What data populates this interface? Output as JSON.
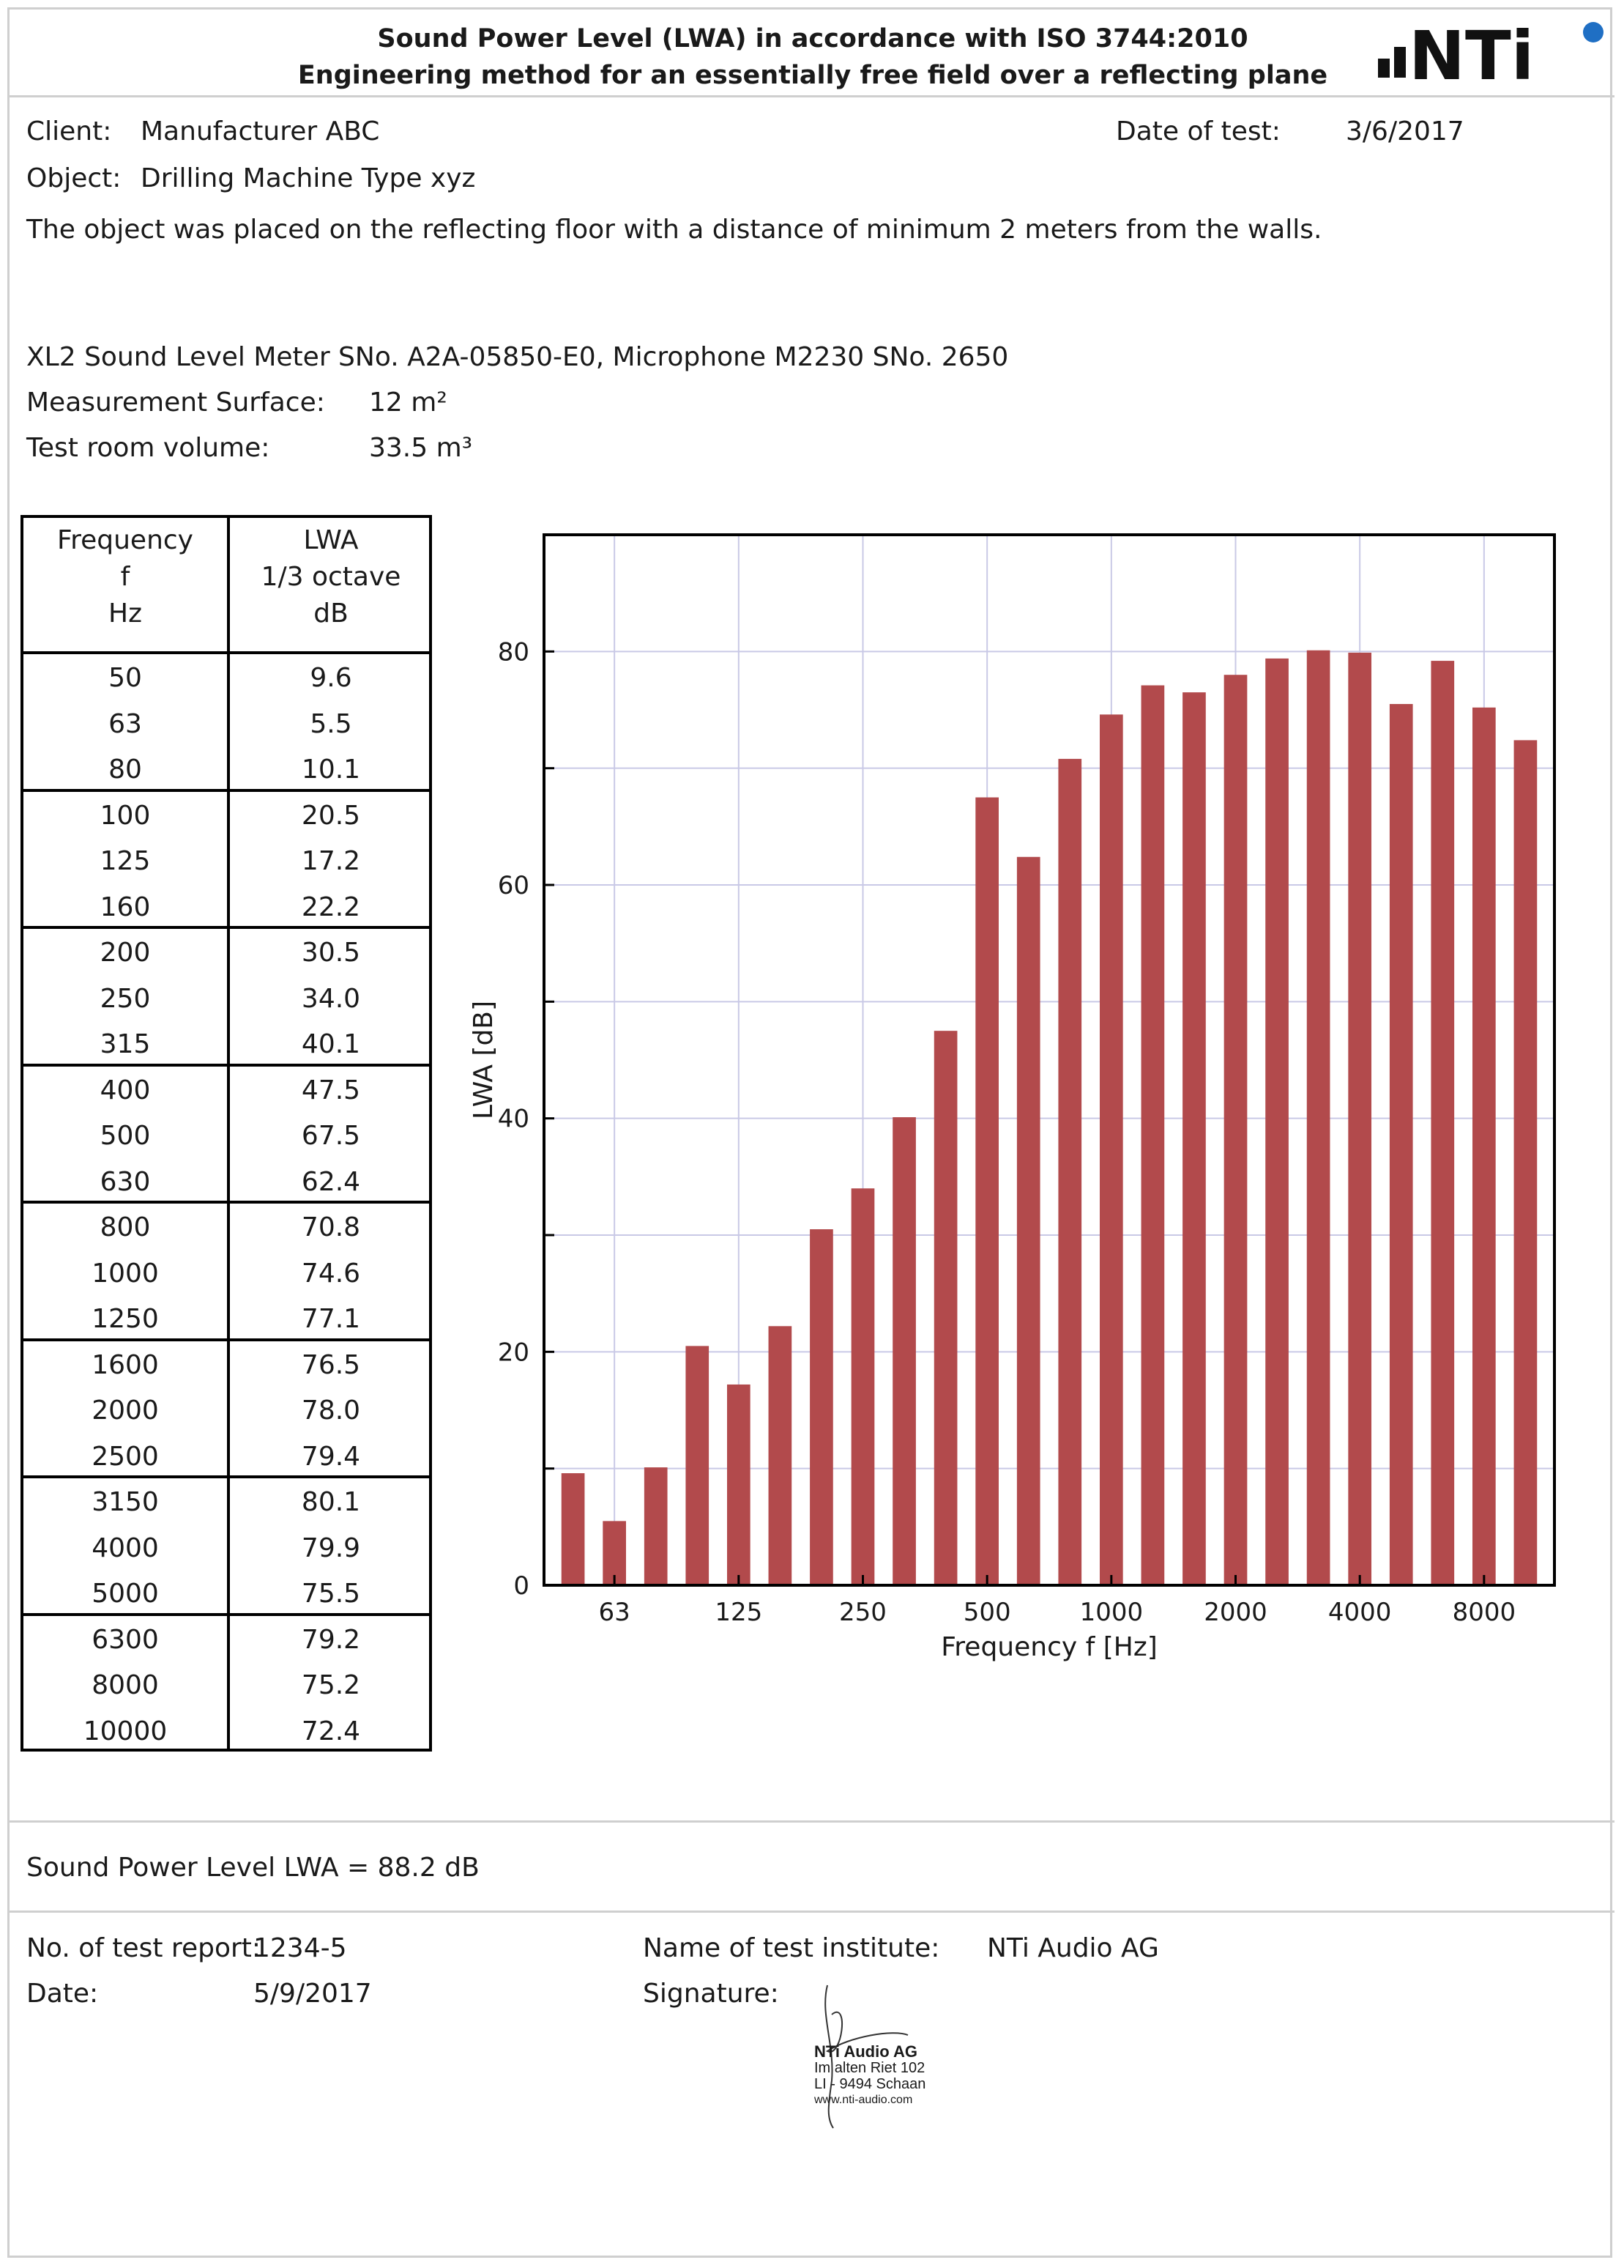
{
  "header": {
    "title_line1": "Sound Power Level (LWA) in accordance with ISO 3744:2010",
    "title_line2": "Engineering method for an essentially free field over a reflecting plane",
    "logo_text": "NTi"
  },
  "info": {
    "client_label": "Client:",
    "client_value": "Manufacturer ABC",
    "date_test_label": "Date of test:",
    "date_test_value": "3/6/2017",
    "object_label": "Object:",
    "object_value": "Drilling Machine Type xyz",
    "description": "The object was placed on the reflecting floor with a distance of minimum 2 meters from the walls.",
    "equipment": "XL2 Sound Level Meter SNo. A2A-05850-E0, Microphone M2230 SNo. 2650",
    "surface_label": "Measurement Surface:",
    "surface_value": "12 m²",
    "volume_label": "Test room volume:",
    "volume_value": "33.5 m³"
  },
  "table": {
    "col1_header": [
      "Frequency",
      "f",
      "Hz"
    ],
    "col2_header": [
      "LWA",
      "1/3 octave",
      "dB"
    ],
    "rows": [
      [
        "50",
        "9.6"
      ],
      [
        "63",
        "5.5"
      ],
      [
        "80",
        "10.1"
      ],
      [
        "100",
        "20.5"
      ],
      [
        "125",
        "17.2"
      ],
      [
        "160",
        "22.2"
      ],
      [
        "200",
        "30.5"
      ],
      [
        "250",
        "34.0"
      ],
      [
        "315",
        "40.1"
      ],
      [
        "400",
        "47.5"
      ],
      [
        "500",
        "67.5"
      ],
      [
        "630",
        "62.4"
      ],
      [
        "800",
        "70.8"
      ],
      [
        "1000",
        "74.6"
      ],
      [
        "1250",
        "77.1"
      ],
      [
        "1600",
        "76.5"
      ],
      [
        "2000",
        "78.0"
      ],
      [
        "2500",
        "79.4"
      ],
      [
        "3150",
        "80.1"
      ],
      [
        "4000",
        "79.9"
      ],
      [
        "5000",
        "75.5"
      ],
      [
        "6300",
        "79.2"
      ],
      [
        "8000",
        "75.2"
      ],
      [
        "10000",
        "72.4"
      ]
    ]
  },
  "chart_data": {
    "type": "bar",
    "title": "",
    "xlabel": "Frequency f [Hz]",
    "ylabel": "LWA [dB]",
    "ylim": [
      0,
      90
    ],
    "y_ticks": [
      0,
      20,
      40,
      60,
      80
    ],
    "x_tick_labels": [
      "63",
      "125",
      "250",
      "500",
      "1000",
      "2000",
      "4000",
      "8000"
    ],
    "x_tick_categories": [
      "63",
      "125",
      "250",
      "500",
      "1000",
      "2000",
      "4000",
      "8000"
    ],
    "grid": true,
    "bar_color": "#b24a4c",
    "categories": [
      "50",
      "63",
      "80",
      "100",
      "125",
      "160",
      "200",
      "250",
      "315",
      "400",
      "500",
      "630",
      "800",
      "1000",
      "1250",
      "1600",
      "2000",
      "2500",
      "3150",
      "4000",
      "5000",
      "6300",
      "8000",
      "10000"
    ],
    "values": [
      9.6,
      5.5,
      10.1,
      20.5,
      17.2,
      22.2,
      30.5,
      34.0,
      40.1,
      47.5,
      67.5,
      62.4,
      70.8,
      74.6,
      77.1,
      76.5,
      78.0,
      79.4,
      80.1,
      79.9,
      75.5,
      79.2,
      75.2,
      72.4
    ]
  },
  "result": {
    "text": "Sound Power Level LWA = 88.2 dB"
  },
  "footer": {
    "report_label": "No. of test report:",
    "report_value": "1234-5",
    "date_label": "Date:",
    "date_value": "5/9/2017",
    "institute_label": "Name of test institute:",
    "institute_value": "NTi Audio AG",
    "signature_label": "Signature:",
    "stamp_lines": [
      "NTi Audio AG",
      "Im alten Riet 102",
      "LI - 9494 Schaan",
      "www.nti-audio.com"
    ]
  }
}
